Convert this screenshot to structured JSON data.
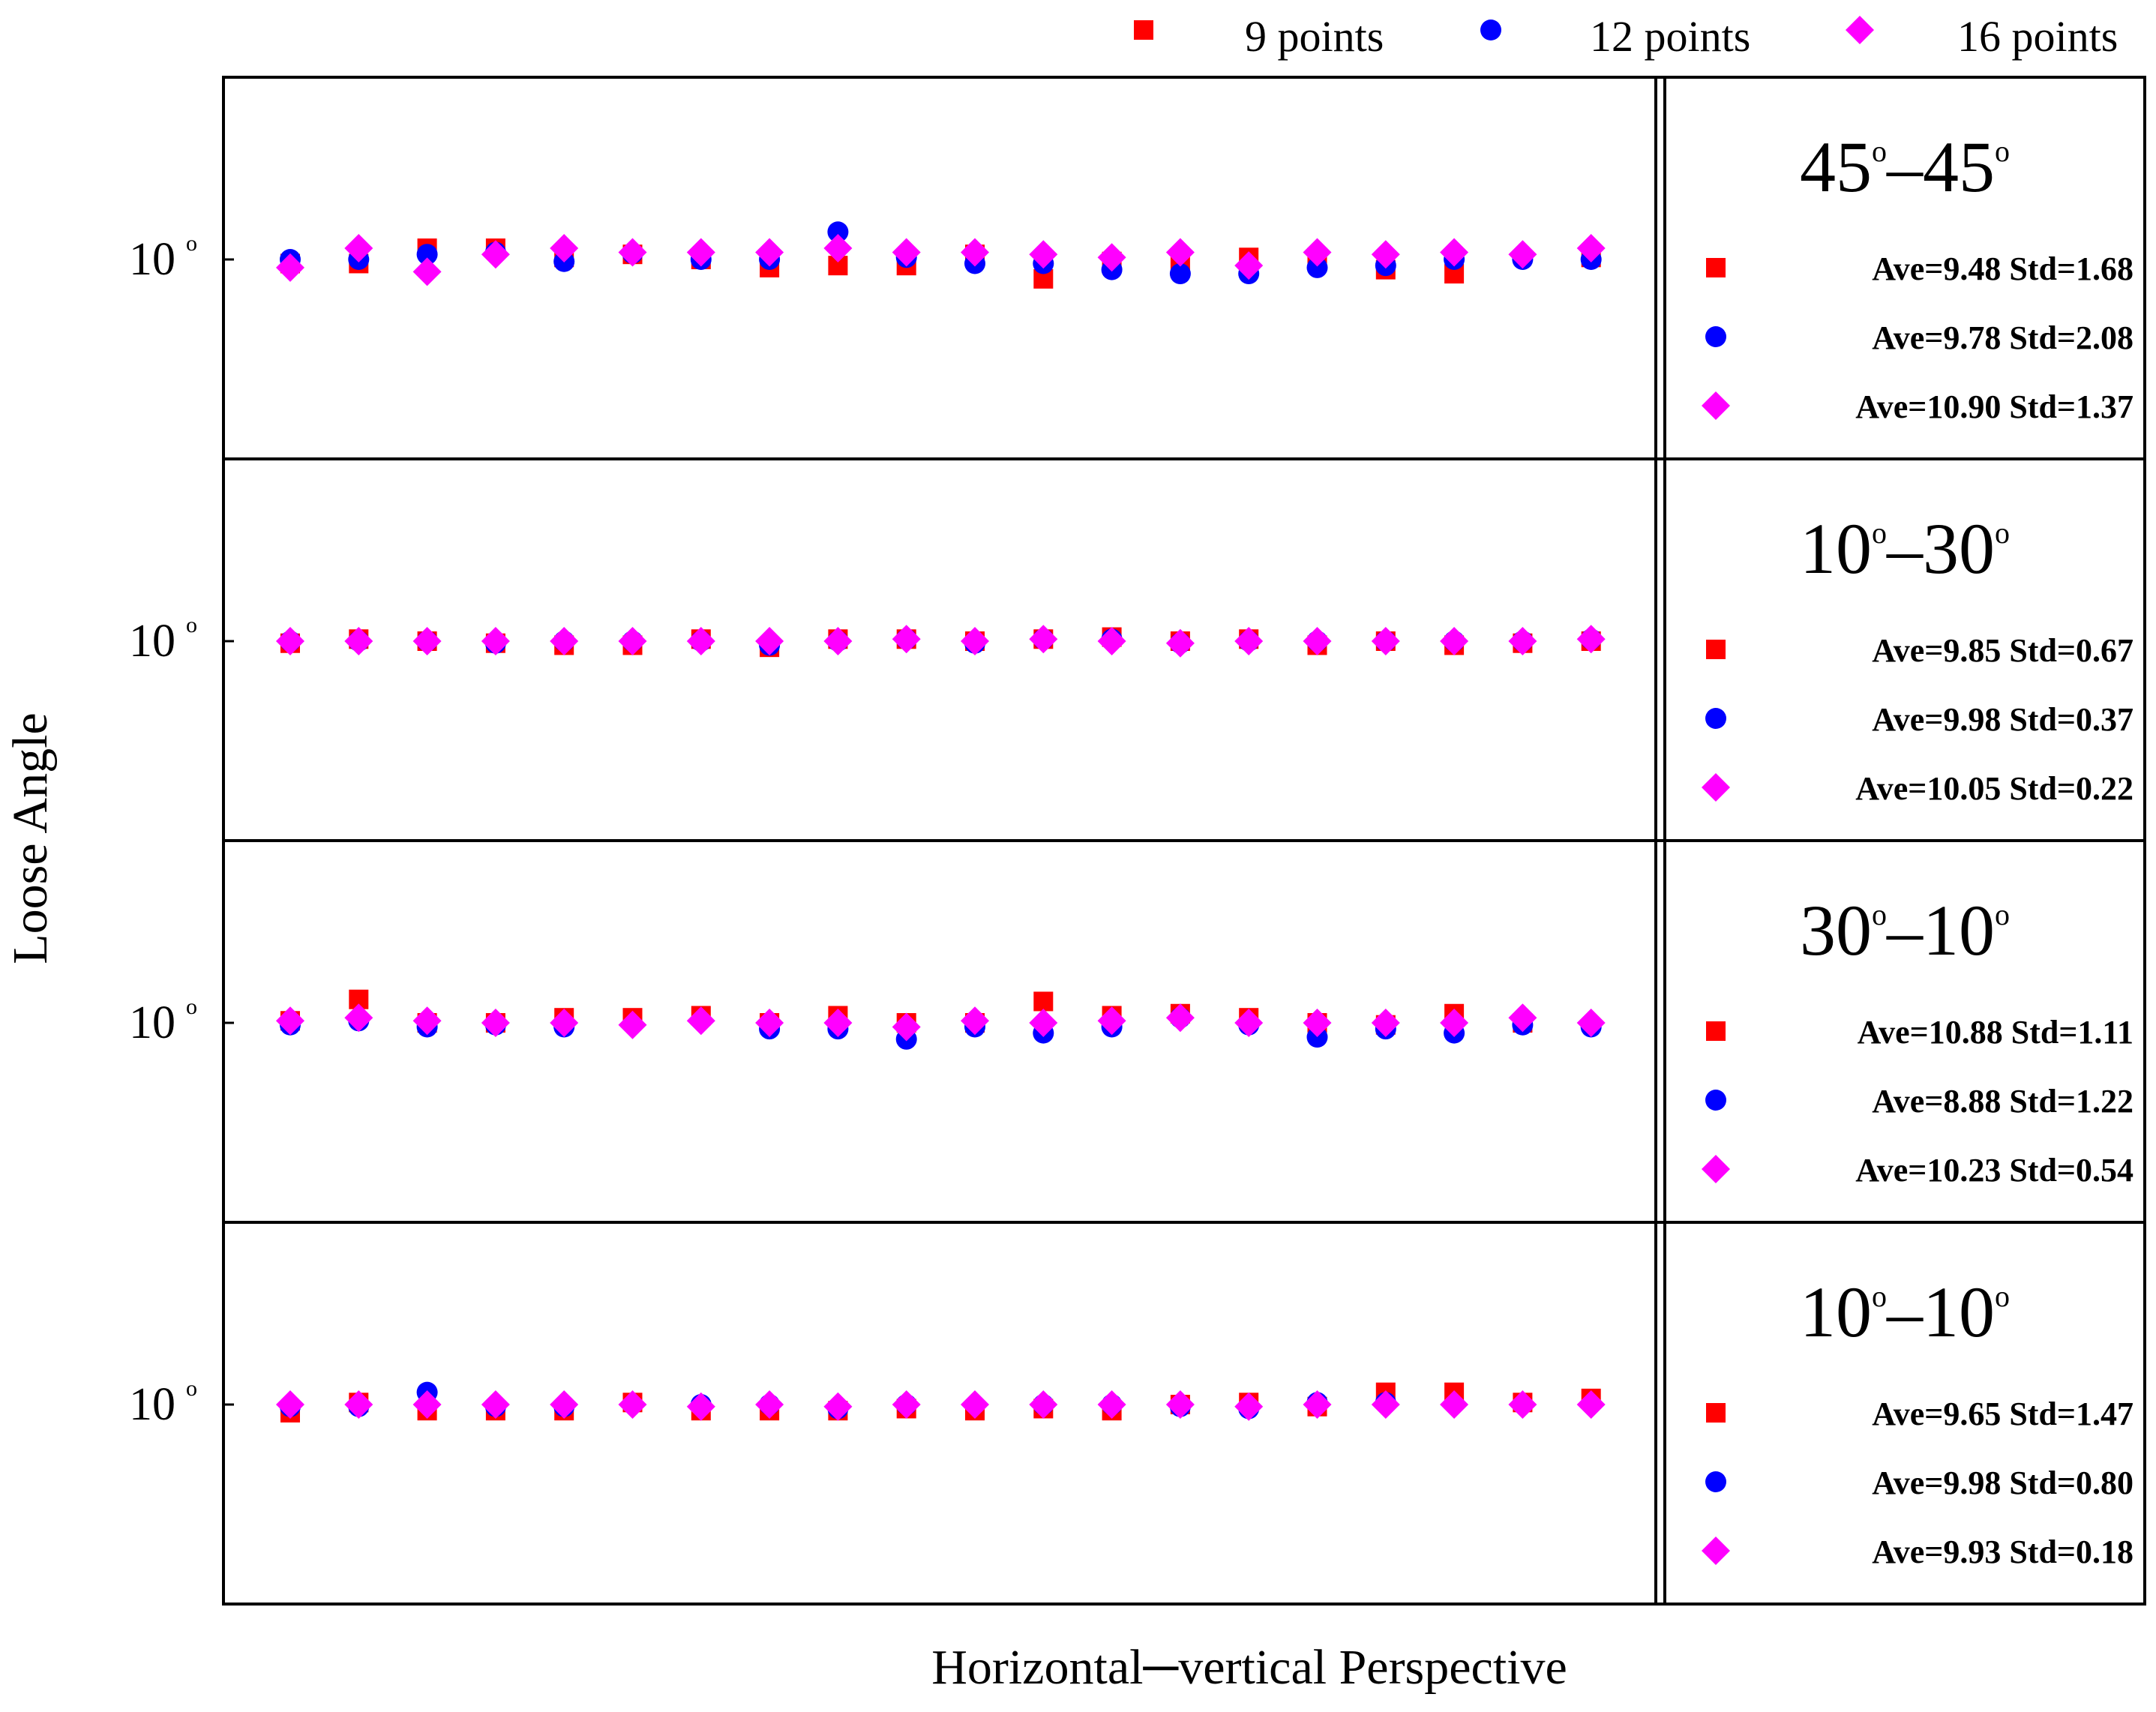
{
  "chart_data": {
    "type": "scatter",
    "xlabel": "Horizontal─vertical Perspective",
    "ylabel": "Loose Angle",
    "ytick_label": "10",
    "degree_symbol": "o",
    "colors": {
      "9 points": "#ff0000",
      "12 points": "#0000ff",
      "16 points": "#ff00ff"
    },
    "legend": [
      {
        "name": "9 points",
        "marker": "square",
        "color": "#ff0000"
      },
      {
        "name": "12 points",
        "marker": "circle",
        "color": "#0000ff"
      },
      {
        "name": "16 points",
        "marker": "diamond",
        "color": "#ff00ff"
      }
    ],
    "x": [
      1,
      2,
      3,
      4,
      5,
      6,
      7,
      8,
      9,
      10,
      11,
      12,
      13,
      14,
      15,
      16,
      17,
      18,
      19,
      20
    ],
    "ylim": [
      6,
      14
    ],
    "panels": [
      {
        "title": {
          "a": "45",
          "b": "45"
        },
        "series": [
          {
            "name": "9 points",
            "values": [
              9.6,
              9.6,
              11.1,
              11.1,
              10.2,
              10.5,
              10.0,
              9.2,
              9.4,
              9.4,
              10.5,
              8.1,
              9.8,
              9.6,
              10.2,
              10.2,
              9.0,
              8.6,
              null,
              10.2
            ]
          },
          {
            "name": "12 points",
            "values": [
              10.0,
              10.0,
              10.5,
              10.7,
              9.8,
              10.6,
              10.0,
              10.0,
              12.7,
              10.2,
              9.6,
              9.6,
              9.0,
              8.6,
              8.6,
              9.2,
              9.4,
              10.0,
              10.0,
              10.0
            ]
          },
          {
            "name": "16 points",
            "values": [
              9.2,
              11.1,
              8.8,
              10.5,
              11.1,
              10.7,
              10.7,
              10.7,
              11.1,
              10.7,
              10.7,
              10.5,
              10.2,
              10.7,
              9.4,
              10.7,
              10.5,
              10.7,
              10.5,
              11.1
            ]
          }
        ],
        "stats": [
          "Ave=9.48 Std=1.68",
          "Ave=9.78 Std=2.08",
          "Ave=10.90 Std=1.37"
        ]
      },
      {
        "title": {
          "a": "10",
          "b": "30"
        },
        "series": [
          {
            "name": "9 points",
            "values": [
              9.8,
              10.2,
              10.0,
              9.8,
              9.6,
              9.6,
              10.2,
              9.4,
              10.2,
              10.2,
              10.0,
              10.2,
              10.4,
              10.0,
              10.2,
              9.6,
              10.0,
              9.6,
              9.8,
              10.0
            ]
          },
          {
            "name": "12 points",
            "values": [
              10.0,
              10.0,
              10.0,
              9.8,
              10.0,
              10.0,
              10.0,
              9.6,
              10.0,
              10.2,
              9.8,
              10.2,
              10.2,
              9.8,
              10.0,
              10.0,
              10.0,
              10.0,
              10.0,
              10.2
            ]
          },
          {
            "name": "16 points",
            "values": [
              10.0,
              10.0,
              10.0,
              10.0,
              10.0,
              10.0,
              10.0,
              10.0,
              10.0,
              10.2,
              10.0,
              10.2,
              10.0,
              9.8,
              10.0,
              10.0,
              10.0,
              10.0,
              10.0,
              10.2
            ]
          }
        ],
        "stats": [
          "Ave=9.85 Std=0.67",
          "Ave=9.98 Std=0.37",
          "Ave=10.05 Std=0.22"
        ]
      },
      {
        "title": {
          "a": "30",
          "b": "10"
        },
        "series": [
          {
            "name": "9 points",
            "values": [
              10.2,
              12.3,
              10.0,
              10.0,
              10.5,
              10.5,
              10.7,
              10.0,
              10.7,
              10.0,
              10.0,
              12.1,
              10.7,
              10.9,
              10.5,
              10.0,
              9.8,
              10.9,
              10.0,
              null
            ]
          },
          {
            "name": "12 points",
            "values": [
              9.8,
              10.2,
              9.6,
              9.8,
              9.6,
              null,
              null,
              9.4,
              9.4,
              8.4,
              9.6,
              9.0,
              9.6,
              10.5,
              9.8,
              8.6,
              9.4,
              9.0,
              9.8,
              9.6
            ]
          },
          {
            "name": "16 points",
            "values": [
              10.2,
              10.5,
              10.2,
              10.0,
              10.0,
              9.8,
              10.2,
              10.0,
              10.0,
              9.6,
              10.2,
              10.0,
              10.2,
              10.5,
              10.0,
              10.0,
              10.0,
              10.0,
              10.5,
              10.0
            ]
          }
        ],
        "stats": [
          "Ave=10.88 Std=1.11",
          "Ave=8.88 Std=1.22",
          "Ave=10.23 Std=0.54"
        ]
      },
      {
        "title": {
          "a": "10",
          "b": "10"
        },
        "series": [
          {
            "name": "9 points",
            "values": [
              9.2,
              10.2,
              9.4,
              9.4,
              9.4,
              10.2,
              9.4,
              9.4,
              9.4,
              9.6,
              9.4,
              9.6,
              9.4,
              10.0,
              10.2,
              9.8,
              11.2,
              11.2,
              10.2,
              10.6
            ]
          },
          {
            "name": "12 points",
            "values": [
              9.8,
              9.8,
              11.2,
              9.8,
              9.8,
              null,
              10.0,
              10.0,
              9.6,
              10.0,
              null,
              10.0,
              10.0,
              9.8,
              9.6,
              10.2,
              10.2,
              null,
              null,
              null
            ]
          },
          {
            "name": "16 points",
            "values": [
              10.0,
              10.0,
              10.0,
              10.0,
              10.0,
              10.0,
              9.8,
              10.0,
              9.8,
              10.0,
              10.0,
              10.0,
              10.0,
              10.0,
              9.8,
              10.0,
              10.0,
              10.0,
              10.0,
              10.0
            ]
          }
        ],
        "stats": [
          "Ave=9.65 Std=1.47",
          "Ave=9.98 Std=0.80",
          "Ave=9.93 Std=0.18"
        ]
      }
    ]
  }
}
